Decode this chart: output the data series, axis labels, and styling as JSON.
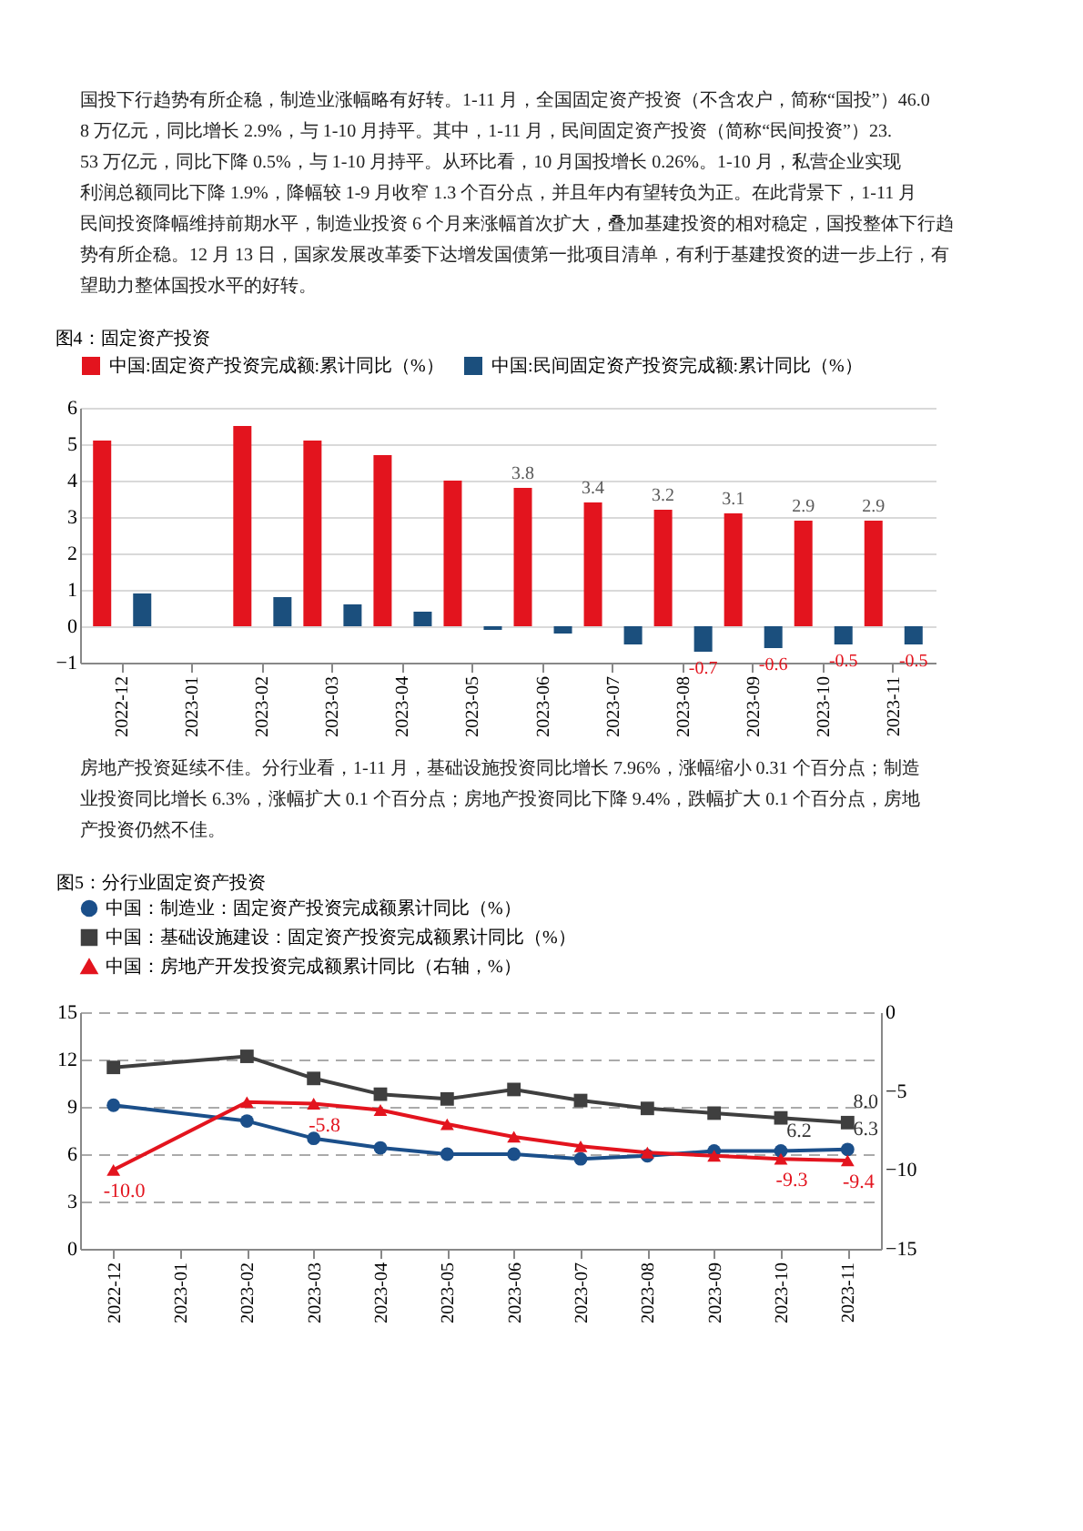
{
  "chart_data": [
    {
      "type": "bar",
      "title": "图4：固定资产投资",
      "annotations": [
        "国投下行趋势有所企稳，制造业涨幅略有好转。1-11 月，全国固定资产投资（不含农户，简称“国投”）46.08 万亿元，同比增长 2.9%，与 1-10 月持平。其中，1-11 月，民间固定资产投资（简称“民间投资”）23.53 万亿元，同比下降 0.5%，与 1-10 月持平。从环比看，10 月国投增长 0.26%。1-10 月，私营企业实现利润总额同比下降 1.9%，降幅较 1-9 月收窄 1.3 个百分点，并且年内有望转负为正。在此背景下，1-11 月民间投资降幅维持前期水平，制造业投资 6 个月来涨幅首次扩大，叠加基建投资的相对稳定，国投整体下行趋势有所企稳。12 月 13 日，国家发展改革委下达增发国债第一批项目清单，有利于基建投资的进一步上行，有望助力整体国投水平的好转。"
      ],
      "categories": [
        "2022-12",
        "2023-01",
        "2023-02",
        "2023-03",
        "2023-04",
        "2023-05",
        "2023-06",
        "2023-07",
        "2023-08",
        "2023-09",
        "2023-10",
        "2023-11"
      ],
      "series": [
        {
          "name": "中国:固定资产投资完成额:累计同比（%）",
          "color": "#e3141e",
          "values": [
            5.1,
            null,
            5.5,
            5.1,
            4.7,
            4.0,
            3.8,
            3.4,
            3.2,
            3.1,
            2.9,
            2.9
          ],
          "value_labels": [
            null,
            null,
            null,
            null,
            null,
            null,
            "3.8",
            "3.4",
            "3.2",
            "3.1",
            "2.9",
            "2.9"
          ]
        },
        {
          "name": "中国:民间固定资产投资完成额:累计同比（%）",
          "color": "#1b4f7d",
          "values": [
            0.9,
            null,
            0.8,
            0.6,
            0.4,
            -0.1,
            -0.2,
            -0.5,
            -0.7,
            -0.6,
            -0.5,
            -0.5
          ],
          "value_labels": [
            null,
            null,
            null,
            null,
            null,
            null,
            null,
            null,
            "-0.7",
            "-0.6",
            "-0.5",
            "-0.5"
          ]
        }
      ],
      "ylim": [
        -1,
        6
      ],
      "yticks": [
        -1,
        0,
        1,
        2,
        3,
        4,
        5,
        6
      ],
      "grid": "y",
      "legend": "top"
    },
    {
      "type": "line",
      "title": "图5：分行业固定资产投资",
      "annotations": [
        "房地产投资延续不佳。分行业看，1-11 月，基础设施投资同比增长 7.96%，涨幅缩小 0.31 个百分点；制造业投资同比增长 6.3%，涨幅扩大 0.1 个百分点；房地产投资同比下降 9.4%，跌幅扩大 0.1 个百分点，房地产投资仍然不佳。"
      ],
      "categories": [
        "2022-12",
        "2023-01",
        "2023-02",
        "2023-03",
        "2023-04",
        "2023-05",
        "2023-06",
        "2023-07",
        "2023-08",
        "2023-09",
        "2023-10",
        "2023-11"
      ],
      "series": [
        {
          "name": "中国：制造业：固定资产投资完成额累计同比（%）",
          "color": "#1b4f8a",
          "marker": "circle",
          "values": [
            9.1,
            null,
            8.1,
            7.0,
            6.4,
            6.0,
            6.0,
            5.7,
            5.9,
            6.2,
            6.2,
            6.3
          ],
          "value_labels": [
            null,
            null,
            null,
            null,
            null,
            null,
            null,
            null,
            null,
            null,
            "6.2",
            "6.3"
          ]
        },
        {
          "name": "中国：基础设施建设：固定资产投资完成额累计同比（%）",
          "color": "#3f3f3f",
          "marker": "square",
          "values": [
            11.5,
            null,
            12.2,
            10.8,
            9.8,
            9.5,
            10.1,
            9.4,
            8.9,
            8.6,
            8.3,
            8.0
          ],
          "value_labels": [
            null,
            null,
            null,
            null,
            null,
            null,
            null,
            null,
            null,
            null,
            null,
            "8.0"
          ]
        },
        {
          "name": "中国：房地产开发投资完成额累计同比（右轴，%）",
          "color": "#e3141e",
          "marker": "triangle",
          "axis": "y2",
          "values": [
            -10.0,
            null,
            -5.7,
            -5.8,
            -6.2,
            -7.1,
            -7.9,
            -8.5,
            -8.9,
            -9.1,
            -9.3,
            -9.4
          ],
          "value_labels": [
            "-10.0",
            null,
            null,
            "-5.8",
            null,
            null,
            null,
            null,
            null,
            null,
            "-9.3",
            "-9.4"
          ]
        }
      ],
      "ylim": [
        0,
        15
      ],
      "yticks": [
        0,
        3,
        6,
        9,
        12,
        15
      ],
      "y2lim": [
        -15,
        0
      ],
      "y2ticks": [
        -15,
        -10,
        -5,
        0
      ],
      "grid": "y",
      "legend": "top",
      "line_style": "solid"
    }
  ]
}
